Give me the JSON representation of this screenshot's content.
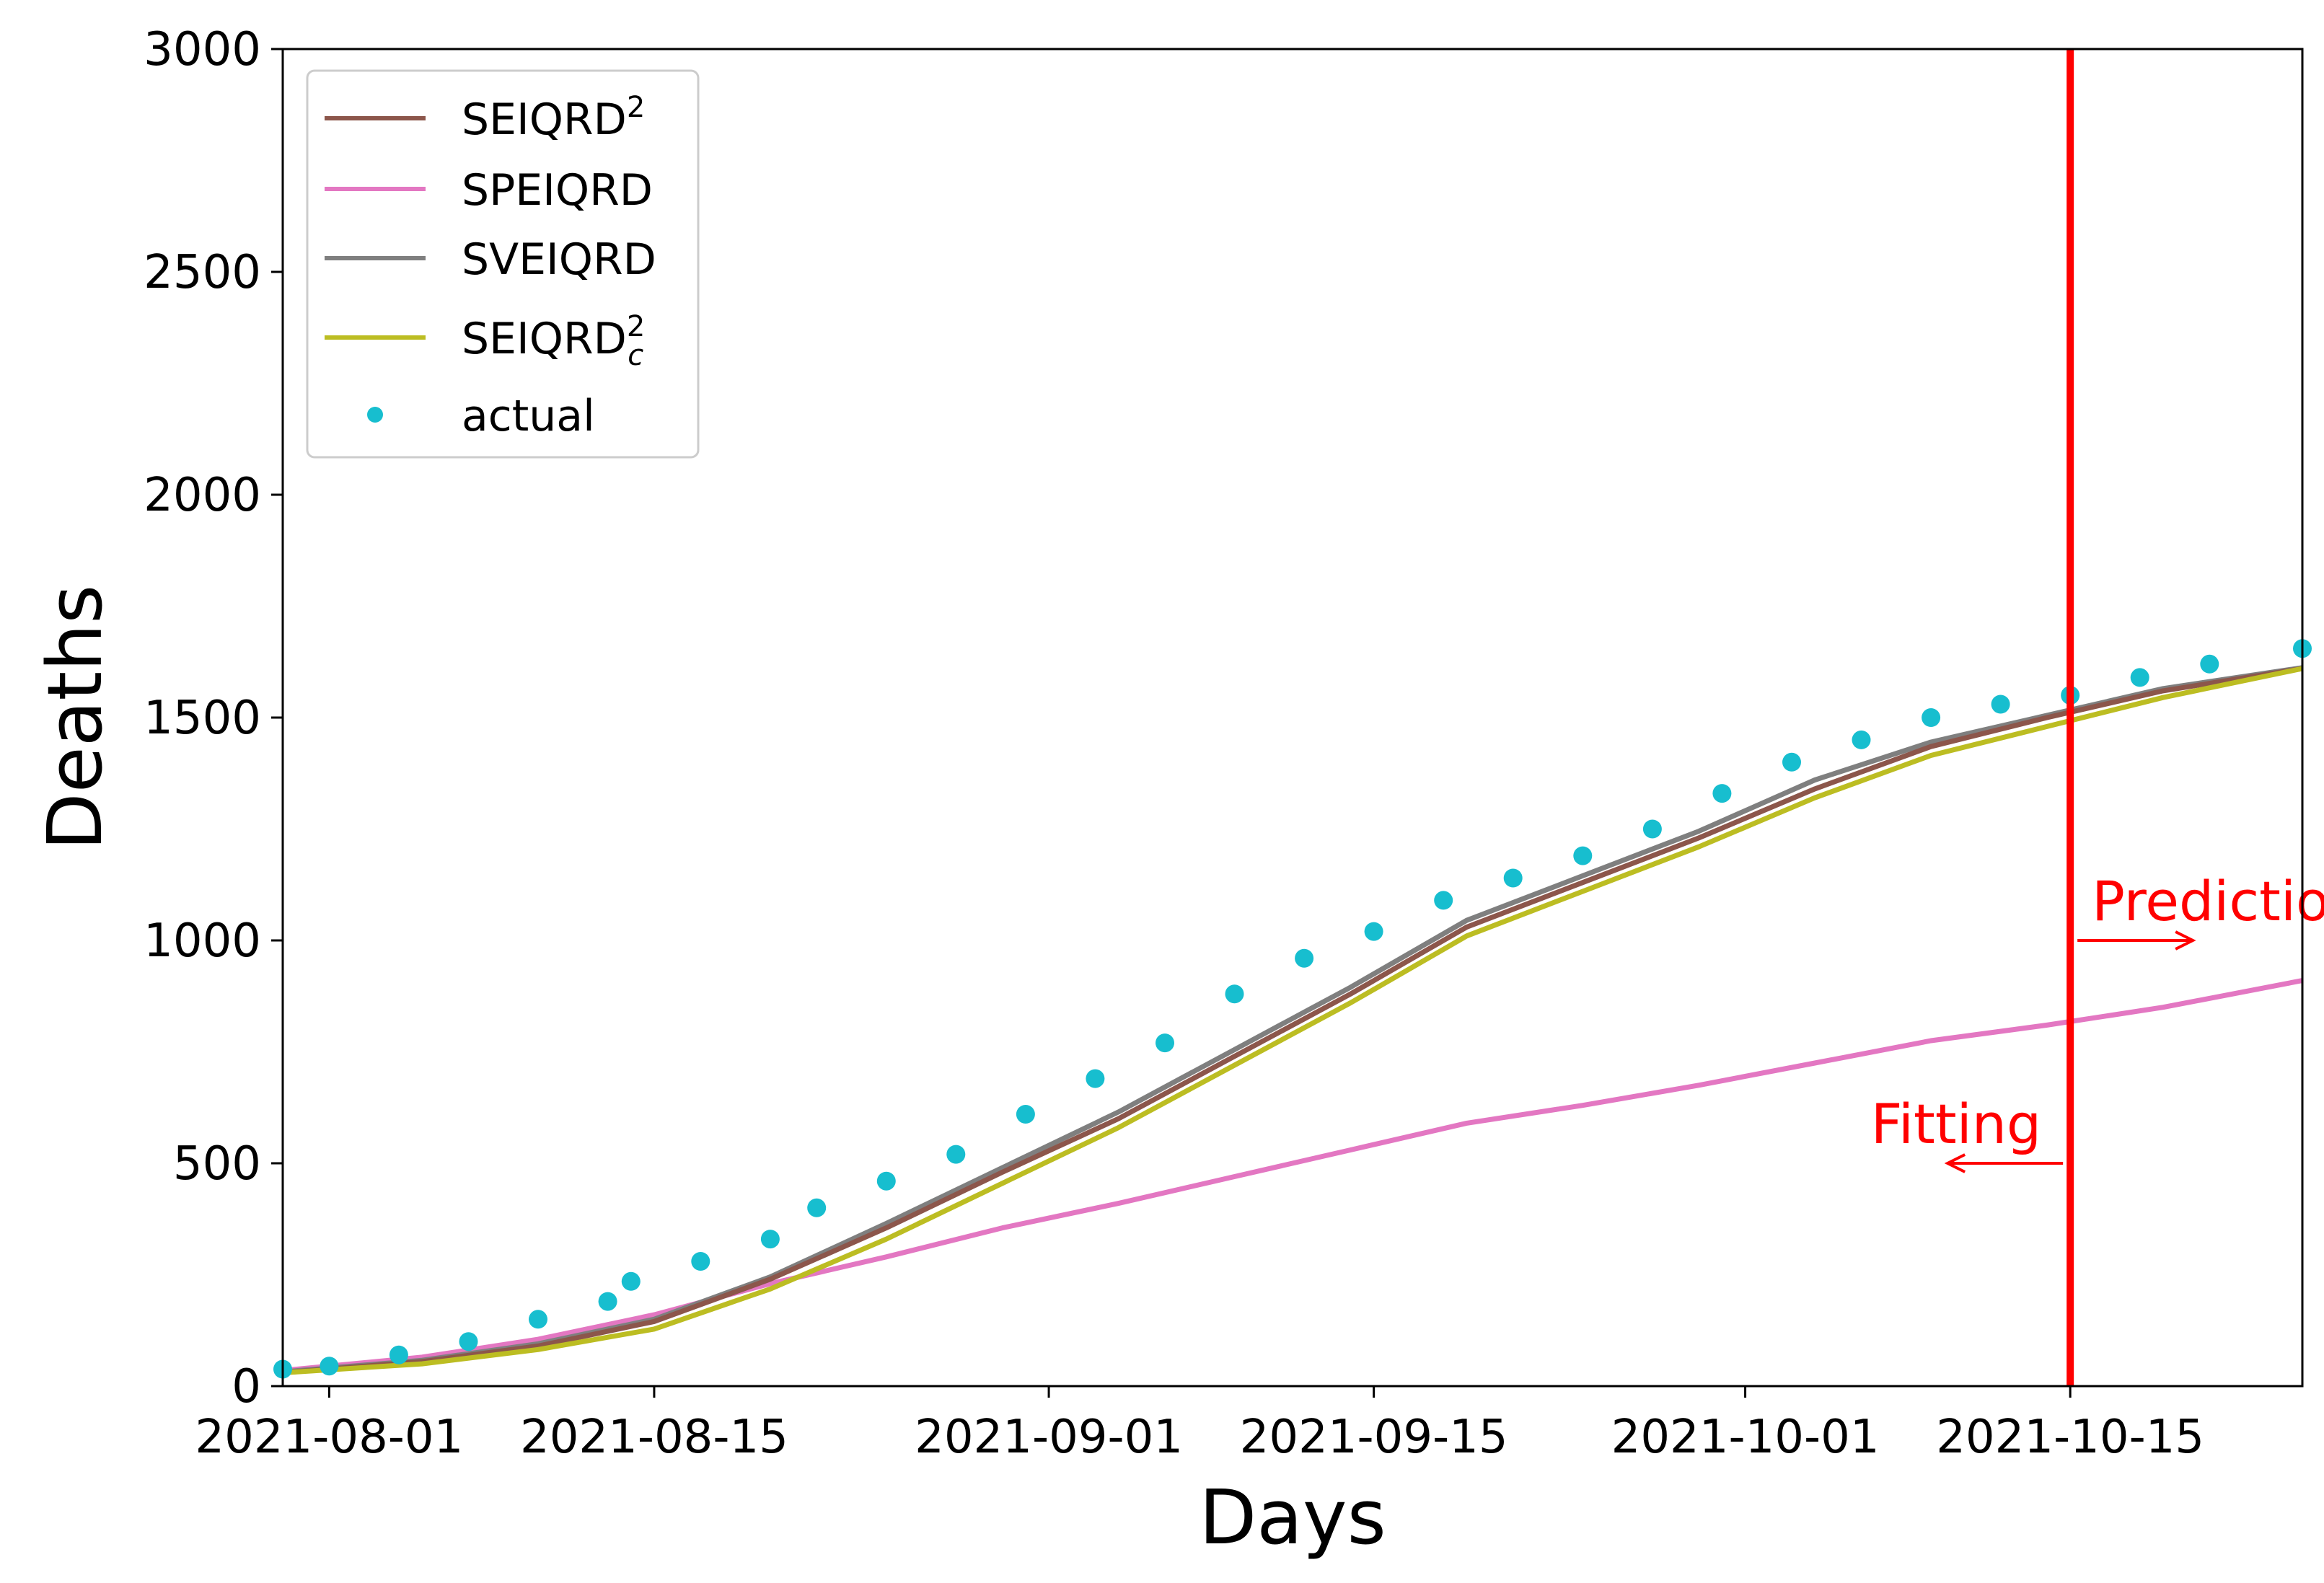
{
  "chart_data": {
    "type": "line",
    "title": "",
    "xlabel": "Days",
    "ylabel": "Deaths",
    "x_range": [
      "2021-07-30",
      "2021-10-25"
    ],
    "ylim": [
      0,
      3000
    ],
    "x_ticks": [
      "2021-08-01",
      "2021-08-15",
      "2021-09-01",
      "2021-09-15",
      "2021-10-01",
      "2021-10-15"
    ],
    "y_ticks": [
      0,
      500,
      1000,
      1500,
      2000,
      2500,
      3000
    ],
    "grid": false,
    "legend_position": "upper-left",
    "legend": {
      "seiqrd2_main": "SEIQRD",
      "seiqrd2_sup": "2",
      "speiqrd": "SPEIQRD",
      "sveiqrd": "SVEIQRD",
      "seiqrd2c_main": "SEIQRD",
      "seiqrd2c_sup": "2",
      "seiqrd2c_sub": "c",
      "actual": "actual"
    },
    "colors": {
      "SEIQRD2": "#8c564b",
      "SPEIQRD": "#e377c2",
      "SVEIQRD": "#7f7f7f",
      "SEIQRD2c": "#bcbd22",
      "actual": "#17becf",
      "split_line": "#ff0000"
    },
    "split_date": "2021-10-15",
    "annotations": {
      "prediction": "Prediction",
      "fitting": "Fitting",
      "arrow_y": [
        1000,
        500
      ]
    },
    "series": [
      {
        "name": "SEIQRD2",
        "x": [
          "2021-07-30",
          "2021-08-05",
          "2021-08-10",
          "2021-08-15",
          "2021-08-20",
          "2021-08-25",
          "2021-08-30",
          "2021-09-04",
          "2021-09-09",
          "2021-09-14",
          "2021-09-19",
          "2021-09-24",
          "2021-09-29",
          "2021-10-04",
          "2021-10-09",
          "2021-10-14",
          "2021-10-19",
          "2021-10-25"
        ],
        "y": [
          30,
          55,
          90,
          145,
          240,
          355,
          480,
          600,
          740,
          880,
          1030,
          1130,
          1230,
          1340,
          1435,
          1500,
          1560,
          1610
        ]
      },
      {
        "name": "SEIQRD2c",
        "x": [
          "2021-07-30",
          "2021-08-05",
          "2021-08-10",
          "2021-08-15",
          "2021-08-20",
          "2021-08-25",
          "2021-08-30",
          "2021-09-04",
          "2021-09-09",
          "2021-09-14",
          "2021-09-19",
          "2021-09-24",
          "2021-09-29",
          "2021-10-04",
          "2021-10-09",
          "2021-10-14",
          "2021-10-19",
          "2021-10-25"
        ],
        "y": [
          30,
          50,
          82,
          128,
          218,
          330,
          455,
          580,
          720,
          860,
          1010,
          1110,
          1210,
          1320,
          1415,
          1480,
          1545,
          1610
        ]
      },
      {
        "name": "SVEIQRD",
        "x": [
          "2021-07-30",
          "2021-08-05",
          "2021-08-10",
          "2021-08-15",
          "2021-08-20",
          "2021-08-25",
          "2021-08-30",
          "2021-09-04",
          "2021-09-09",
          "2021-09-14",
          "2021-09-19",
          "2021-09-24",
          "2021-09-29",
          "2021-10-04",
          "2021-10-09",
          "2021-10-14",
          "2021-10-19",
          "2021-10-25"
        ],
        "y": [
          32,
          58,
          95,
          150,
          245,
          365,
          490,
          615,
          755,
          895,
          1045,
          1145,
          1245,
          1360,
          1445,
          1505,
          1565,
          1612
        ]
      },
      {
        "name": "SPEIQRD",
        "x": [
          "2021-07-30",
          "2021-08-05",
          "2021-08-10",
          "2021-08-15",
          "2021-08-20",
          "2021-08-25",
          "2021-08-30",
          "2021-09-04",
          "2021-09-09",
          "2021-09-14",
          "2021-09-19",
          "2021-09-24",
          "2021-09-29",
          "2021-10-04",
          "2021-10-09",
          "2021-10-14",
          "2021-10-19",
          "2021-10-25"
        ],
        "y": [
          35,
          65,
          105,
          160,
          230,
          290,
          355,
          410,
          470,
          530,
          590,
          630,
          675,
          725,
          775,
          810,
          850,
          910
        ]
      },
      {
        "name": "actual",
        "x": [
          "2021-07-30",
          "2021-08-01",
          "2021-08-04",
          "2021-08-07",
          "2021-08-10",
          "2021-08-13",
          "2021-08-14",
          "2021-08-17",
          "2021-08-20",
          "2021-08-22",
          "2021-08-25",
          "2021-08-28",
          "2021-08-31",
          "2021-09-03",
          "2021-09-06",
          "2021-09-09",
          "2021-09-12",
          "2021-09-15",
          "2021-09-18",
          "2021-09-21",
          "2021-09-24",
          "2021-09-27",
          "2021-09-30",
          "2021-10-03",
          "2021-10-06",
          "2021-10-09",
          "2021-10-12",
          "2021-10-15",
          "2021-10-18",
          "2021-10-21",
          "2021-10-25"
        ],
        "y": [
          38,
          45,
          70,
          100,
          150,
          190,
          235,
          280,
          330,
          400,
          460,
          520,
          610,
          690,
          770,
          880,
          960,
          1020,
          1090,
          1140,
          1190,
          1250,
          1330,
          1400,
          1450,
          1500,
          1530,
          1550,
          1590,
          1620,
          1655
        ]
      }
    ]
  }
}
